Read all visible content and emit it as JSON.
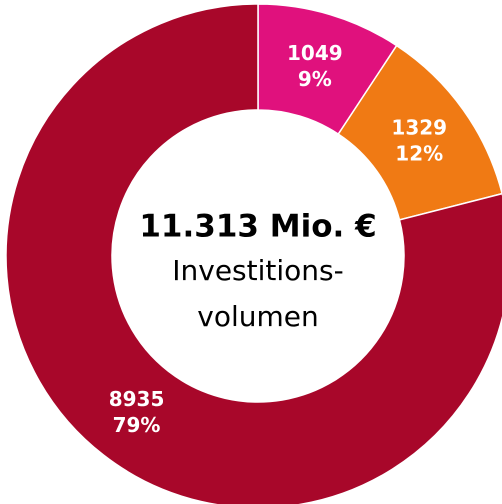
{
  "chart_data": {
    "type": "donut",
    "center_title": "11.313 Mio. €",
    "center_subtitle": [
      "Investitions-",
      "volumen"
    ],
    "values": [
      1049,
      1329,
      8935
    ],
    "percent_labels": [
      "9%",
      "12%",
      "79%"
    ],
    "colors": [
      "#e0117d",
      "#f07a14",
      "#a8072a"
    ]
  }
}
